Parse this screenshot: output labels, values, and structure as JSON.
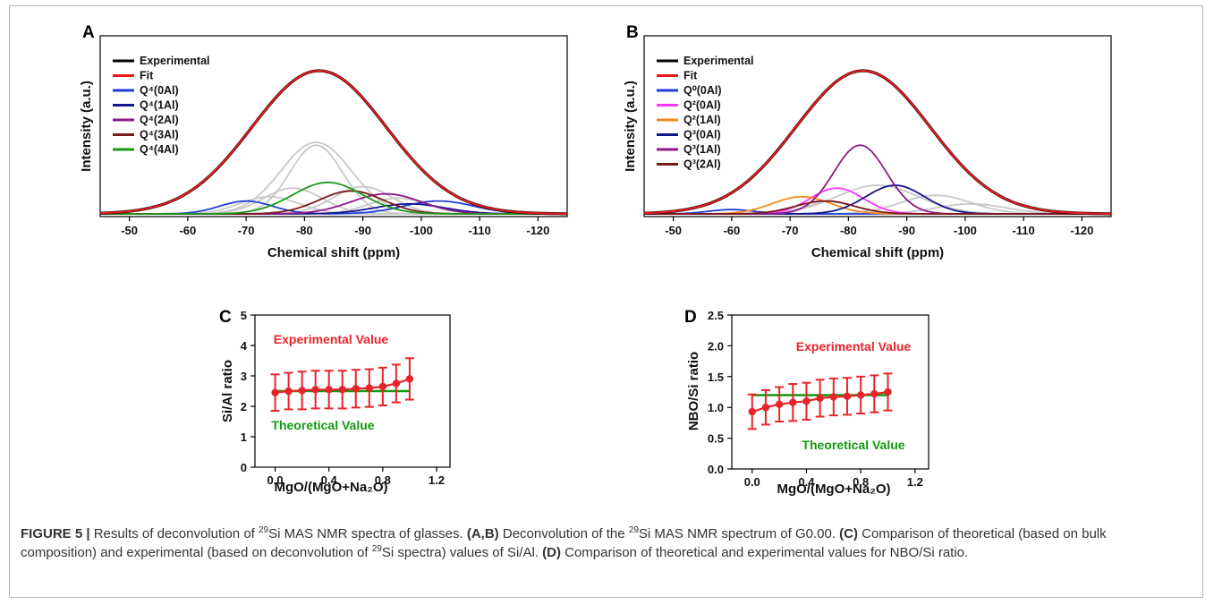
{
  "colors": {
    "exp": "#000000",
    "fit": "#e41a1c",
    "gray": "#c8c8c8",
    "red_series": "#e8232a",
    "green_series": "#119911"
  },
  "panels": {
    "A": {
      "label": "A",
      "xlabel": "Chemical shift (ppm)",
      "ylabel": "Intensity (a.u.)",
      "xticks": [
        "-50",
        "-60",
        "-70",
        "-80",
        "-90",
        "-100",
        "-110",
        "-120"
      ],
      "legend": [
        {
          "label": "Experimental",
          "color": "#000000"
        },
        {
          "label": "Fit",
          "color": "#e41a1c"
        },
        {
          "label": "Q⁴(0Al)",
          "color": "#1f3fd8"
        },
        {
          "label": "Q⁴(1Al)",
          "color": "#14148c"
        },
        {
          "label": "Q⁴(2Al)",
          "color": "#8c198c"
        },
        {
          "label": "Q⁴(3Al)",
          "color": "#7a1a1a"
        },
        {
          "label": "Q⁴(4Al)",
          "color": "#1a9a1a"
        }
      ]
    },
    "B": {
      "label": "B",
      "xlabel": "Chemical shift (ppm)",
      "ylabel": "Intensity (a.u.)",
      "xticks": [
        "-50",
        "-60",
        "-70",
        "-80",
        "-90",
        "-100",
        "-110",
        "-120"
      ],
      "legend": [
        {
          "label": "Experimental",
          "color": "#000000"
        },
        {
          "label": "Fit",
          "color": "#e41a1c"
        },
        {
          "label": "Q⁰(0Al)",
          "color": "#1f3fd8"
        },
        {
          "label": "Q²(0Al)",
          "color": "#ff33ff"
        },
        {
          "label": "Q²(1Al)",
          "color": "#f08a1a"
        },
        {
          "label": "Q³(0Al)",
          "color": "#14148c"
        },
        {
          "label": "Q³(1Al)",
          "color": "#8c198c"
        },
        {
          "label": "Q³(2Al)",
          "color": "#7a1a1a"
        }
      ]
    },
    "C": {
      "label": "C",
      "xlabel": "MgO/(MgO+Na₂O)",
      "ylabel": "Si/Al ratio",
      "yticks": [
        "0",
        "1",
        "2",
        "3",
        "4",
        "5"
      ],
      "xticks": [
        "0.0",
        "0.4",
        "0.8",
        "1.2"
      ],
      "exp_label": "Experimental Value",
      "theo_label": "Theoretical Value"
    },
    "D": {
      "label": "D",
      "xlabel": "MgO/(MgO+Na₂O)",
      "ylabel": "NBO/Si ratio",
      "yticks": [
        "0.0",
        "0.5",
        "1.0",
        "1.5",
        "2.0",
        "2.5"
      ],
      "xticks": [
        "0.0",
        "0.4",
        "0.8",
        "1.2"
      ],
      "exp_label": "Experimental Value",
      "theo_label": "Theoretical Value"
    }
  },
  "chart_data": [
    {
      "type": "line",
      "panel": "A",
      "xlabel": "Chemical shift (ppm)",
      "ylabel": "Intensity (a.u.)",
      "xlim": [
        -45,
        -125
      ],
      "series": [
        {
          "name": "Experimental",
          "peaks": [
            {
              "center": -82.5,
              "height": 1.0,
              "width": 11.5
            }
          ]
        },
        {
          "name": "Fit",
          "peaks": [
            {
              "center": -82.5,
              "height": 1.0,
              "width": 11.5
            }
          ]
        },
        {
          "name": "Q⁴(0Al)",
          "peaks": [
            {
              "center": -70,
              "height": 0.09,
              "width": 4.5
            },
            {
              "center": -103,
              "height": 0.09,
              "width": 6
            }
          ]
        },
        {
          "name": "Q⁴(1Al)",
          "peaks": [
            {
              "center": -98,
              "height": 0.07,
              "width": 6
            }
          ]
        },
        {
          "name": "Q⁴(2Al)",
          "peaks": [
            {
              "center": -94,
              "height": 0.14,
              "width": 6
            }
          ]
        },
        {
          "name": "Q⁴(3Al)",
          "peaks": [
            {
              "center": -88,
              "height": 0.16,
              "width": 5.5
            }
          ]
        },
        {
          "name": "Q⁴(4Al)",
          "peaks": [
            {
              "center": -84,
              "height": 0.22,
              "width": 6
            }
          ]
        },
        {
          "name": "gray",
          "peaks": [
            {
              "center": -82,
              "height": 0.48,
              "width": 4.5
            },
            {
              "center": -82,
              "height": 0.5,
              "width": 6
            },
            {
              "center": -78,
              "height": 0.18,
              "width": 5
            },
            {
              "center": -74,
              "height": 0.12,
              "width": 5
            },
            {
              "center": -90,
              "height": 0.19,
              "width": 5
            },
            {
              "center": -96,
              "height": 0.11,
              "width": 5
            }
          ]
        }
      ]
    },
    {
      "type": "line",
      "panel": "B",
      "xlabel": "Chemical shift (ppm)",
      "ylabel": "Intensity (a.u.)",
      "xlim": [
        -45,
        -125
      ],
      "series": [
        {
          "name": "Experimental",
          "peaks": [
            {
              "center": -82.5,
              "height": 1.0,
              "width": 11.5
            }
          ]
        },
        {
          "name": "Fit",
          "peaks": [
            {
              "center": -82.5,
              "height": 1.0,
              "width": 11.5
            }
          ]
        },
        {
          "name": "Q⁰(0Al)",
          "peaks": [
            {
              "center": -60,
              "height": 0.03,
              "width": 4
            }
          ]
        },
        {
          "name": "Q²(0Al)",
          "peaks": [
            {
              "center": -78,
              "height": 0.18,
              "width": 4.5
            }
          ]
        },
        {
          "name": "Q²(1Al)",
          "peaks": [
            {
              "center": -72,
              "height": 0.12,
              "width": 5
            }
          ]
        },
        {
          "name": "Q³(0Al)",
          "peaks": [
            {
              "center": -88,
              "height": 0.2,
              "width": 5
            }
          ]
        },
        {
          "name": "Q³(1Al)",
          "peaks": [
            {
              "center": -82,
              "height": 0.48,
              "width": 4.5
            }
          ]
        },
        {
          "name": "Q³(2Al)",
          "peaks": [
            {
              "center": -76,
              "height": 0.09,
              "width": 5
            }
          ]
        },
        {
          "name": "gray",
          "peaks": [
            {
              "center": -85,
              "height": 0.2,
              "width": 7
            },
            {
              "center": -95,
              "height": 0.13,
              "width": 6
            },
            {
              "center": -101,
              "height": 0.07,
              "width": 6
            },
            {
              "center": -77,
              "height": 0.09,
              "width": 4
            }
          ]
        }
      ]
    },
    {
      "type": "scatter",
      "panel": "C",
      "xlabel": "MgO/(MgO+Na₂O)",
      "ylabel": "Si/Al ratio",
      "xlim": [
        -0.15,
        1.3
      ],
      "ylim": [
        0,
        5
      ],
      "series": [
        {
          "name": "Experimental Value",
          "x": [
            0.0,
            0.1,
            0.2,
            0.3,
            0.4,
            0.5,
            0.6,
            0.7,
            0.8,
            0.9,
            1.0
          ],
          "values": [
            2.45,
            2.5,
            2.52,
            2.55,
            2.55,
            2.55,
            2.58,
            2.6,
            2.65,
            2.75,
            2.9
          ],
          "err": [
            0.6,
            0.6,
            0.62,
            0.62,
            0.62,
            0.62,
            0.62,
            0.62,
            0.62,
            0.62,
            0.68
          ]
        },
        {
          "name": "Theoretical Value",
          "x": [
            0.0,
            1.0
          ],
          "values": [
            2.5,
            2.5
          ]
        }
      ]
    },
    {
      "type": "scatter",
      "panel": "D",
      "xlabel": "MgO/(MgO+Na₂O)",
      "ylabel": "NBO/Si ratio",
      "xlim": [
        -0.15,
        1.3
      ],
      "ylim": [
        0,
        2.5
      ],
      "series": [
        {
          "name": "Experimental Value",
          "x": [
            0.0,
            0.1,
            0.2,
            0.3,
            0.4,
            0.5,
            0.6,
            0.7,
            0.8,
            0.9,
            1.0
          ],
          "values": [
            0.93,
            1.0,
            1.05,
            1.08,
            1.1,
            1.15,
            1.17,
            1.18,
            1.2,
            1.22,
            1.25
          ],
          "err": [
            0.28,
            0.28,
            0.28,
            0.3,
            0.3,
            0.3,
            0.3,
            0.3,
            0.3,
            0.3,
            0.3
          ]
        },
        {
          "name": "Theoretical Value",
          "x": [
            0.0,
            1.0
          ],
          "values": [
            1.2,
            1.2
          ]
        }
      ]
    }
  ],
  "caption": {
    "fig_label": "FIGURE 5 |",
    "t1": " Results of deconvolution of ",
    "sup29": "29",
    "t2": "Si MAS NMR spectra of glasses. ",
    "ab": "(A,B)",
    "t3": " Deconvolution of the ",
    "t4": "Si MAS NMR spectrum of G0.00. ",
    "c": "(C)",
    "t5": " Comparison of theoretical (based on bulk composition) and experimental (based on deconvolution of ",
    "t6": "Si spectra) values of Si/Al. ",
    "d": "(D)",
    "t7": " Comparison of theoretical and experimental values for NBO/Si ratio."
  }
}
